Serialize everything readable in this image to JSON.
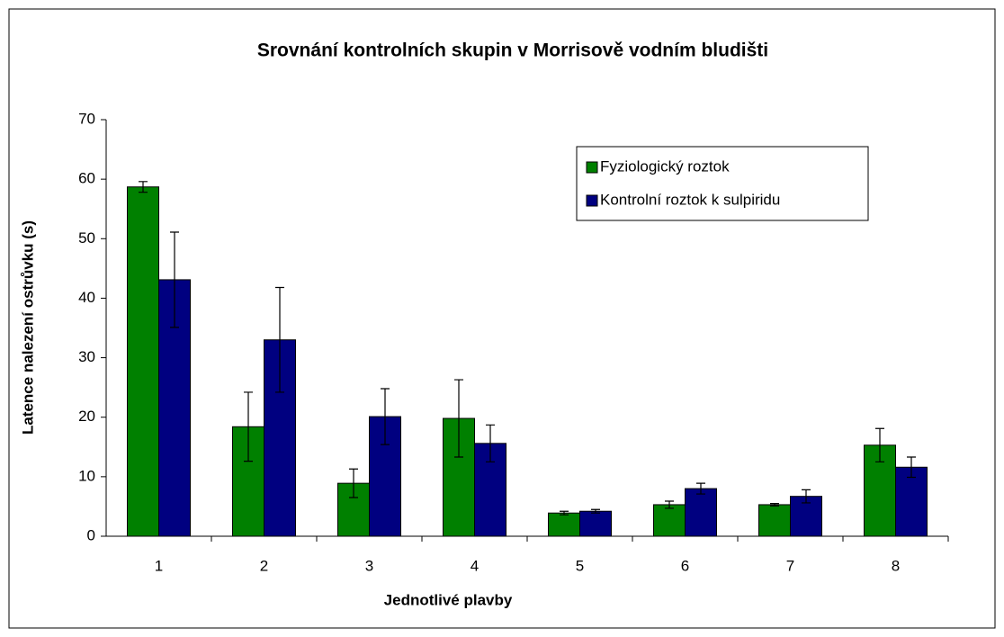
{
  "chart_data": {
    "type": "bar",
    "title": "Srovnání kontrolních skupin v Morrisově vodním bludišti",
    "x_label": "Jednotlivé plavby",
    "y_label": "Latence nalezení ostrůvku (s)",
    "categories": [
      "1",
      "2",
      "3",
      "4",
      "5",
      "6",
      "7",
      "8"
    ],
    "series": [
      {
        "name": "Fyziologický roztok",
        "color": "#008000",
        "values": [
          58.7,
          18.4,
          8.9,
          19.8,
          3.9,
          5.3,
          5.3,
          15.3
        ],
        "errors": [
          0.9,
          5.8,
          2.4,
          6.5,
          0.3,
          0.6,
          0.2,
          2.8
        ]
      },
      {
        "name": "Kontrolní roztok k sulpiridu",
        "color": "#000080",
        "values": [
          43.1,
          33.0,
          20.1,
          15.6,
          4.2,
          8.0,
          6.7,
          11.6
        ],
        "errors": [
          8.0,
          8.8,
          4.7,
          3.1,
          0.3,
          0.9,
          1.1,
          1.7
        ]
      }
    ],
    "ylim": [
      0,
      70
    ],
    "yticks": [
      0,
      10,
      20,
      30,
      40,
      50,
      60,
      70
    ],
    "legend": "upper right"
  }
}
